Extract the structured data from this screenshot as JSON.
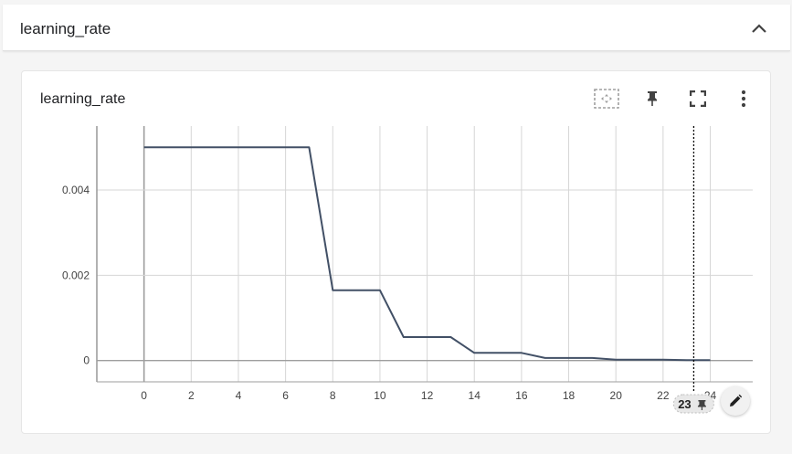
{
  "group": {
    "title": "learning_rate"
  },
  "card": {
    "title": "learning_rate"
  },
  "icons": {
    "collapse": "chevron-up-icon",
    "fit_domain": "fit-domain-icon",
    "pin": "pin-icon",
    "fullscreen": "fullscreen-icon",
    "more": "more-vert-icon",
    "edit": "edit-pencil-icon"
  },
  "colors": {
    "line": "#425066",
    "grid": "#d6d6d6",
    "axis": "#9e9e9e",
    "cursor": "#000000"
  },
  "cursor": {
    "step_label": "23"
  },
  "chart_data": {
    "type": "line",
    "title": "",
    "xlabel": "",
    "ylabel": "",
    "xlim": [
      -2,
      25.8
    ],
    "ylim": [
      -0.0005,
      0.0055
    ],
    "x_ticks": [
      0,
      2,
      4,
      6,
      8,
      10,
      12,
      14,
      16,
      18,
      20,
      22,
      24
    ],
    "x_tick_labels": [
      "0",
      "2",
      "4",
      "6",
      "8",
      "10",
      "12",
      "14",
      "16",
      "18",
      "20",
      "22",
      "24"
    ],
    "y_ticks": [
      0,
      0.002,
      0.004
    ],
    "y_tick_labels": [
      "0",
      "0.002",
      "0.004"
    ],
    "grid": true,
    "series": [
      {
        "x": [
          0,
          1,
          2,
          3,
          4,
          5,
          6,
          7,
          8,
          9,
          10,
          11,
          12,
          13,
          14,
          15,
          16,
          17,
          18,
          19,
          20,
          21,
          22,
          23,
          24
        ],
        "y": [
          0.005,
          0.005,
          0.005,
          0.005,
          0.005,
          0.005,
          0.005,
          0.005,
          0.00165,
          0.00165,
          0.00165,
          0.00055,
          0.00055,
          0.00055,
          0.00018,
          0.00018,
          0.00018,
          6e-05,
          6e-05,
          6e-05,
          2e-05,
          2e-05,
          2e-05,
          7e-06,
          7e-06
        ]
      }
    ],
    "cursor_x": 23.3
  }
}
